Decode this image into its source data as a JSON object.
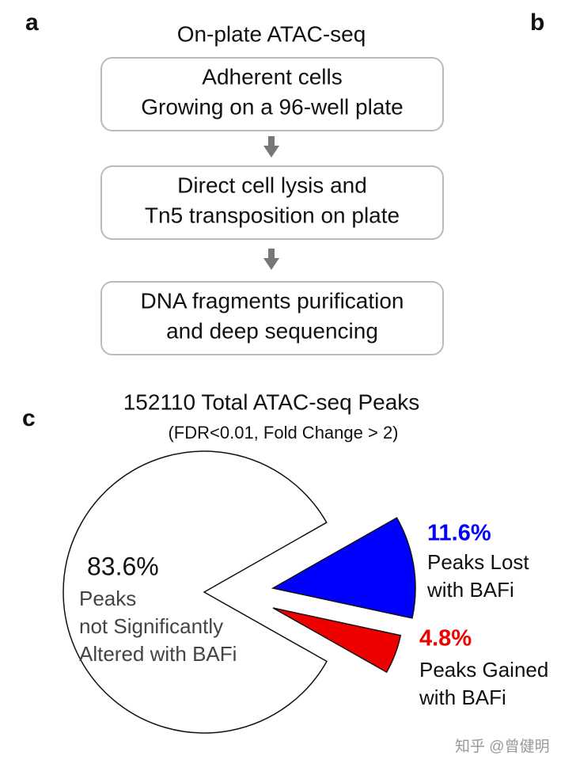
{
  "panels": {
    "a": "a",
    "b": "b",
    "c": "c"
  },
  "flowchart": {
    "title": "On-plate ATAC-seq",
    "steps": [
      [
        "Adherent  cells",
        "Growing on a 96-well plate"
      ],
      [
        "Direct cell lysis and",
        "Tn5 transposition on plate"
      ],
      [
        "DNA fragments purification",
        "and deep sequencing"
      ]
    ]
  },
  "chart_data": {
    "type": "pie",
    "title": "152110 Total ATAC-seq Peaks",
    "subtitle": "(FDR<0.01, Fold Change > 2)",
    "categories": [
      [
        "Peaks",
        "not Significantly",
        "Altered with BAFi"
      ],
      [
        "Peaks Lost",
        "with BAFi"
      ],
      [
        "Peaks Gained",
        "with BAFi"
      ]
    ],
    "values": [
      83.6,
      11.6,
      4.8
    ],
    "value_labels": [
      "83.6%",
      "11.6%",
      "4.8%"
    ],
    "colors": [
      "#ffffff",
      "#0000ff",
      "#ee0000"
    ]
  },
  "watermark": "知乎 @曾健明"
}
